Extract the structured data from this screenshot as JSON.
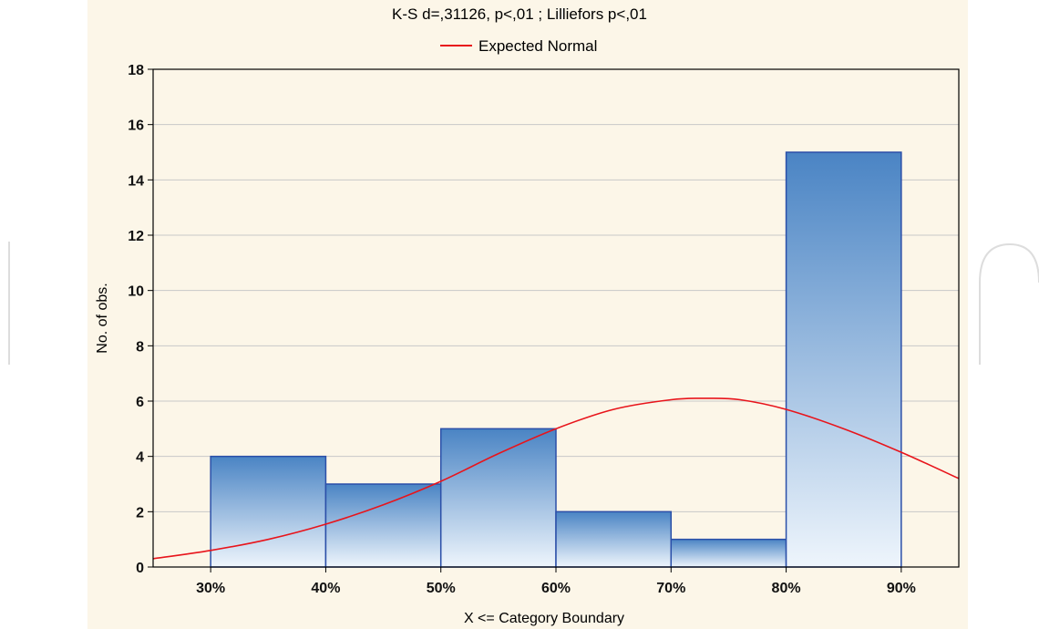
{
  "chart_data": {
    "type": "bar",
    "title": "K-S d=,31126, p<,01 ; Lilliefors p<,01",
    "legend": {
      "entries": [
        {
          "name": "Expected Normal",
          "color": "#e8141b",
          "kind": "line"
        }
      ],
      "placement": "top-center"
    },
    "xlabel": "X <= Category Boundary",
    "ylabel": "No. of obs.",
    "xlim": [
      25,
      95
    ],
    "ylim": [
      0,
      18
    ],
    "x_ticks": [
      30,
      40,
      50,
      60,
      70,
      80,
      90
    ],
    "x_tick_labels": [
      "30%",
      "40%",
      "50%",
      "60%",
      "70%",
      "80%",
      "90%"
    ],
    "y_ticks": [
      0,
      2,
      4,
      6,
      8,
      10,
      12,
      14,
      16,
      18
    ],
    "y_tick_labels": [
      "0",
      "2",
      "4",
      "6",
      "8",
      "10",
      "12",
      "14",
      "16",
      "18"
    ],
    "grid": {
      "horizontal": true,
      "vertical": false
    },
    "bins": [
      {
        "from": 30,
        "to": 40,
        "value": 4
      },
      {
        "from": 40,
        "to": 50,
        "value": 3
      },
      {
        "from": 50,
        "to": 60,
        "value": 5
      },
      {
        "from": 60,
        "to": 70,
        "value": 2
      },
      {
        "from": 70,
        "to": 80,
        "value": 1
      },
      {
        "from": 80,
        "to": 90,
        "value": 15
      }
    ],
    "curve": {
      "name": "Expected Normal",
      "points": [
        [
          25,
          0.3
        ],
        [
          30,
          0.6
        ],
        [
          35,
          1.0
        ],
        [
          40,
          1.55
        ],
        [
          45,
          2.25
        ],
        [
          50,
          3.1
        ],
        [
          55,
          4.1
        ],
        [
          60,
          5.0
        ],
        [
          65,
          5.7
        ],
        [
          70,
          6.05
        ],
        [
          73,
          6.1
        ],
        [
          76,
          6.05
        ],
        [
          80,
          5.7
        ],
        [
          85,
          5.0
        ],
        [
          90,
          4.15
        ],
        [
          95,
          3.2
        ]
      ]
    },
    "colors": {
      "bar_top": "#4a84c4",
      "bar_bottom": "#eef5fc",
      "bar_stroke": "#2b4fa8",
      "curve": "#e8141b",
      "grid": "#c8c8c8"
    }
  }
}
